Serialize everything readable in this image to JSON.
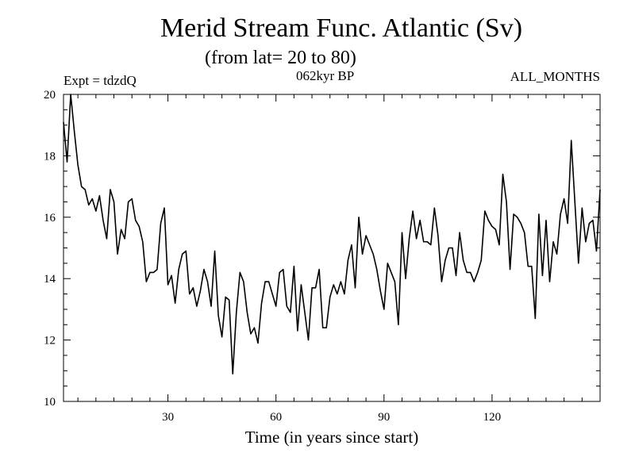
{
  "header": {
    "title": "Merid Stream Func. Atlantic (Sv)",
    "subtitle": "(from lat= 20 to 80)",
    "expt_label": "Expt = tdzdQ",
    "era_label": "062kyr BP",
    "months_label": "ALL_MONTHS"
  },
  "chart_data": {
    "type": "line",
    "title": "Merid Stream Func. Atlantic (Sv)",
    "subtitle": "(from lat= 20 to 80)",
    "xlabel": "Time (in years since start)",
    "ylabel": "",
    "xlim": [
      1,
      150
    ],
    "ylim": [
      10,
      20
    ],
    "xticks": [
      30,
      60,
      90,
      120
    ],
    "yticks": [
      10,
      12,
      14,
      16,
      18,
      20
    ],
    "x": [
      1,
      2,
      3,
      4,
      5,
      6,
      7,
      8,
      9,
      10,
      11,
      12,
      13,
      14,
      15,
      16,
      17,
      18,
      19,
      20,
      21,
      22,
      23,
      24,
      25,
      26,
      27,
      28,
      29,
      30,
      31,
      32,
      33,
      34,
      35,
      36,
      37,
      38,
      39,
      40,
      41,
      42,
      43,
      44,
      45,
      46,
      47,
      48,
      49,
      50,
      51,
      52,
      53,
      54,
      55,
      56,
      57,
      58,
      59,
      60,
      61,
      62,
      63,
      64,
      65,
      66,
      67,
      68,
      69,
      70,
      71,
      72,
      73,
      74,
      75,
      76,
      77,
      78,
      79,
      80,
      81,
      82,
      83,
      84,
      85,
      86,
      87,
      88,
      89,
      90,
      91,
      92,
      93,
      94,
      95,
      96,
      97,
      98,
      99,
      100,
      101,
      102,
      103,
      104,
      105,
      106,
      107,
      108,
      109,
      110,
      111,
      112,
      113,
      114,
      115,
      116,
      117,
      118,
      119,
      120,
      121,
      122,
      123,
      124,
      125,
      126,
      127,
      128,
      129,
      130,
      131,
      132,
      133,
      134,
      135,
      136,
      137,
      138,
      139,
      140,
      141,
      142,
      143,
      144,
      145,
      146,
      147,
      148,
      149,
      150
    ],
    "series": [
      {
        "name": "tdzdQ",
        "values": [
          19.1,
          17.8,
          20.0,
          18.8,
          17.7,
          17.0,
          16.9,
          16.4,
          16.6,
          16.2,
          16.7,
          15.9,
          15.3,
          16.9,
          16.5,
          14.8,
          15.6,
          15.3,
          16.5,
          16.6,
          15.9,
          15.7,
          15.2,
          13.9,
          14.2,
          14.2,
          14.3,
          15.8,
          16.3,
          13.8,
          14.1,
          13.2,
          14.3,
          14.8,
          14.9,
          13.5,
          13.7,
          13.1,
          13.6,
          14.3,
          13.9,
          13.1,
          14.9,
          12.8,
          12.1,
          13.4,
          13.3,
          10.9,
          12.9,
          14.2,
          13.9,
          12.9,
          12.2,
          12.4,
          11.9,
          13.2,
          13.9,
          13.9,
          13.5,
          13.1,
          14.2,
          14.3,
          13.1,
          12.9,
          14.4,
          12.3,
          13.8,
          12.9,
          12.0,
          13.7,
          13.7,
          14.3,
          12.4,
          12.4,
          13.4,
          13.8,
          13.5,
          13.9,
          13.5,
          14.6,
          15.1,
          13.7,
          16.0,
          14.8,
          15.4,
          15.1,
          14.8,
          14.3,
          13.6,
          13.0,
          14.5,
          14.2,
          13.9,
          12.5,
          15.5,
          14.0,
          15.3,
          16.2,
          15.3,
          15.9,
          15.2,
          15.2,
          15.1,
          16.3,
          15.4,
          13.9,
          14.6,
          15.0,
          15.0,
          14.1,
          15.5,
          14.6,
          14.2,
          14.2,
          13.9,
          14.2,
          14.6,
          16.2,
          15.9,
          15.7,
          15.6,
          15.1,
          17.4,
          16.5,
          14.3,
          16.1,
          16.0,
          15.8,
          15.5,
          14.4,
          14.4,
          12.7,
          16.1,
          14.1,
          15.9,
          13.9,
          15.2,
          14.8,
          16.1,
          16.6,
          15.8,
          18.5,
          16.5,
          14.5,
          16.3,
          15.2,
          15.8,
          15.9,
          14.9,
          16.9
        ]
      }
    ]
  }
}
